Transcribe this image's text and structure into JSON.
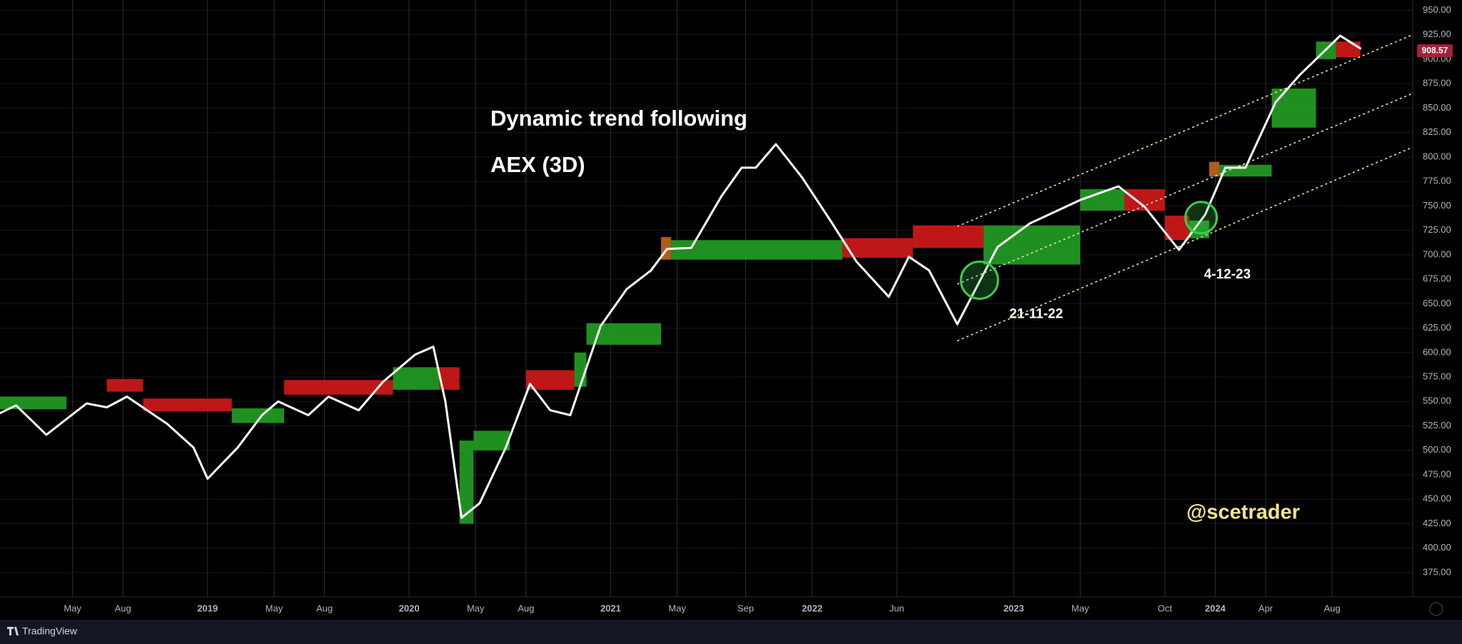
{
  "chart_data": {
    "type": "line",
    "title": "Dynamic trend following",
    "subtitle": "AEX (3D)",
    "watermark": "@scetrader",
    "brand": "TradingView",
    "color": "#ffffff",
    "grid": true,
    "xlim": [
      2017.97,
      2024.98
    ],
    "ylim": [
      350.2,
      960.5
    ],
    "xticks": [
      {
        "value": 2018.33,
        "label": "May"
      },
      {
        "value": 2018.58,
        "label": "Aug"
      },
      {
        "value": 2019,
        "label": "2019"
      },
      {
        "value": 2019.33,
        "label": "May"
      },
      {
        "value": 2019.58,
        "label": "Aug"
      },
      {
        "value": 2020,
        "label": "2020"
      },
      {
        "value": 2020.33,
        "label": "May"
      },
      {
        "value": 2020.58,
        "label": "Aug"
      },
      {
        "value": 2021,
        "label": "2021"
      },
      {
        "value": 2021.33,
        "label": "May"
      },
      {
        "value": 2021.67,
        "label": "Sep"
      },
      {
        "value": 2022,
        "label": "2022"
      },
      {
        "value": 2022.42,
        "label": "Jun"
      },
      {
        "value": 2023,
        "label": "2023"
      },
      {
        "value": 2023.33,
        "label": "May"
      },
      {
        "value": 2023.75,
        "label": "Oct"
      },
      {
        "value": 2024,
        "label": "2024"
      },
      {
        "value": 2024.25,
        "label": "Apr"
      },
      {
        "value": 2024.58,
        "label": "Aug"
      }
    ],
    "yticks": [
      {
        "value": 375,
        "label": "375.00"
      },
      {
        "value": 400,
        "label": "400.00"
      },
      {
        "value": 425,
        "label": "425.00"
      },
      {
        "value": 450,
        "label": "450.00"
      },
      {
        "value": 475,
        "label": "475.00"
      },
      {
        "value": 500,
        "label": "500.00"
      },
      {
        "value": 525,
        "label": "525.00"
      },
      {
        "value": 550,
        "label": "550.00"
      },
      {
        "value": 575,
        "label": "575.00"
      },
      {
        "value": 600,
        "label": "600.00"
      },
      {
        "value": 625,
        "label": "625.00"
      },
      {
        "value": 650,
        "label": "650.00"
      },
      {
        "value": 675,
        "label": "675.00"
      },
      {
        "value": 700,
        "label": "700.00"
      },
      {
        "value": 725,
        "label": "725.00"
      },
      {
        "value": 750,
        "label": "750.00"
      },
      {
        "value": 775,
        "label": "775.00"
      },
      {
        "value": 800,
        "label": "800.00"
      },
      {
        "value": 825,
        "label": "825.00"
      },
      {
        "value": 850,
        "label": "850.00"
      },
      {
        "value": 875,
        "label": "875.00"
      },
      {
        "value": 900,
        "label": "900.00"
      },
      {
        "value": 925,
        "label": "925.00"
      },
      {
        "value": 950,
        "label": "950.00"
      }
    ],
    "x": [
      2017.97,
      2018.05,
      2018.2,
      2018.4,
      2018.5,
      2018.6,
      2018.8,
      2018.93,
      2019.0,
      2019.15,
      2019.27,
      2019.35,
      2019.5,
      2019.6,
      2019.75,
      2019.87,
      2020.03,
      2020.12,
      2020.18,
      2020.26,
      2020.35,
      2020.48,
      2020.6,
      2020.7,
      2020.8,
      2020.95,
      2021.08,
      2021.2,
      2021.28,
      2021.4,
      2021.55,
      2021.65,
      2021.72,
      2021.82,
      2021.95,
      2022.1,
      2022.22,
      2022.38,
      2022.48,
      2022.58,
      2022.72,
      2022.92,
      2023.08,
      2023.33,
      2023.52,
      2023.65,
      2023.82,
      2023.95,
      2024.05,
      2024.15,
      2024.3,
      2024.42,
      2024.62,
      2024.72
    ],
    "values": [
      538,
      546,
      516,
      548,
      544,
      555,
      527,
      503,
      471,
      503,
      536,
      550,
      536,
      555,
      541,
      570,
      598,
      606,
      550,
      431,
      446,
      503,
      568,
      541,
      536,
      627,
      665,
      684,
      706,
      707,
      760,
      789,
      789,
      813,
      779,
      732,
      693,
      657,
      698,
      684,
      629,
      708,
      732,
      756,
      770,
      749,
      705,
      741,
      789,
      789,
      856,
      884,
      924,
      911
    ],
    "bands": [
      {
        "x": [
          2017.97,
          2018.3
        ],
        "upper": 555,
        "lower": 542,
        "color": "#22a022"
      },
      {
        "x": [
          2018.5,
          2018.68
        ],
        "upper": 573,
        "lower": 560,
        "color": "#d41a1a"
      },
      {
        "x": [
          2018.68,
          2019.12
        ],
        "upper": 553,
        "lower": 540,
        "color": "#d41a1a"
      },
      {
        "x": [
          2019.12,
          2019.38
        ],
        "upper": 543,
        "lower": 528,
        "color": "#22a022"
      },
      {
        "x": [
          2019.38,
          2019.92
        ],
        "upper": 572,
        "lower": 557,
        "color": "#d41a1a"
      },
      {
        "x": [
          2019.92,
          2020.15
        ],
        "upper": 585,
        "lower": 562,
        "color": "#22a022"
      },
      {
        "x": [
          2020.15,
          2020.25
        ],
        "upper": 585,
        "lower": 562,
        "color": "#d41a1a"
      },
      {
        "x": [
          2020.25,
          2020.32
        ],
        "upper": 510,
        "lower": 425,
        "color": "#22a022"
      },
      {
        "x": [
          2020.32,
          2020.5
        ],
        "upper": 520,
        "lower": 500,
        "color": "#22a022"
      },
      {
        "x": [
          2020.58,
          2020.82
        ],
        "upper": 582,
        "lower": 562,
        "color": "#d41a1a"
      },
      {
        "x": [
          2020.82,
          2020.88
        ],
        "upper": 600,
        "lower": 565,
        "color": "#22a022"
      },
      {
        "x": [
          2020.88,
          2021.25
        ],
        "upper": 630,
        "lower": 608,
        "color": "#22a022"
      },
      {
        "x": [
          2021.25,
          2021.3
        ],
        "upper": 718,
        "lower": 695,
        "color": "#c8641a"
      },
      {
        "x": [
          2021.3,
          2022.15
        ],
        "upper": 715,
        "lower": 695,
        "color": "#22a022"
      },
      {
        "x": [
          2022.15,
          2022.5
        ],
        "upper": 717,
        "lower": 697,
        "color": "#d41a1a"
      },
      {
        "x": [
          2022.5,
          2022.85
        ],
        "upper": 730,
        "lower": 707,
        "color": "#d41a1a"
      },
      {
        "x": [
          2022.85,
          2023.33
        ],
        "upper": 730,
        "lower": 690,
        "color": "#22a022"
      },
      {
        "x": [
          2023.33,
          2023.55
        ],
        "upper": 767,
        "lower": 745,
        "color": "#22a022"
      },
      {
        "x": [
          2023.55,
          2023.75
        ],
        "upper": 767,
        "lower": 745,
        "color": "#d41a1a"
      },
      {
        "x": [
          2023.75,
          2023.87
        ],
        "upper": 740,
        "lower": 715,
        "color": "#d41a1a"
      },
      {
        "x": [
          2023.87,
          2023.97
        ],
        "upper": 735,
        "lower": 717,
        "color": "#22a022"
      },
      {
        "x": [
          2023.97,
          2024.02
        ],
        "upper": 795,
        "lower": 780,
        "color": "#c8641a"
      },
      {
        "x": [
          2024.02,
          2024.28
        ],
        "upper": 792,
        "lower": 780,
        "color": "#22a022"
      },
      {
        "x": [
          2024.28,
          2024.5
        ],
        "upper": 870,
        "lower": 830,
        "color": "#22a022"
      },
      {
        "x": [
          2024.5,
          2024.6
        ],
        "upper": 918,
        "lower": 900,
        "color": "#22a022"
      },
      {
        "x": [
          2024.6,
          2024.72
        ],
        "upper": 918,
        "lower": 902,
        "color": "#d41a1a"
      }
    ],
    "trendlines": [
      {
        "x": [
          2022.72,
          2024.98
        ],
        "values": [
          729,
          925
        ]
      },
      {
        "x": [
          2022.72,
          2024.98
        ],
        "values": [
          670,
          865
        ]
      },
      {
        "x": [
          2022.72,
          2024.98
        ],
        "values": [
          612,
          810
        ]
      }
    ],
    "markers": [
      {
        "x": 2022.83,
        "value": 674,
        "label": "21-11-22"
      },
      {
        "x": 2023.93,
        "value": 738,
        "label": "4-12-23"
      }
    ],
    "last_price": 908.57
  }
}
